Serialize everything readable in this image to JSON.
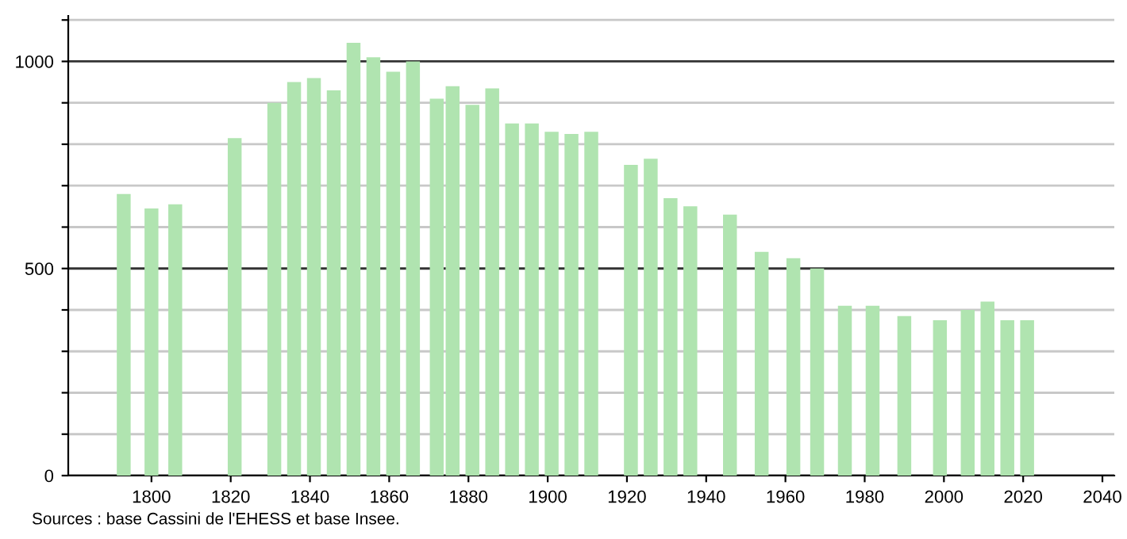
{
  "chart_data": {
    "type": "bar",
    "x": [
      1793,
      1800,
      1806,
      1821,
      1831,
      1836,
      1841,
      1846,
      1851,
      1856,
      1861,
      1866,
      1872,
      1876,
      1881,
      1886,
      1891,
      1896,
      1901,
      1906,
      1911,
      1921,
      1926,
      1931,
      1936,
      1946,
      1954,
      1962,
      1968,
      1975,
      1982,
      1990,
      1999,
      2006,
      2011,
      2016,
      2021
    ],
    "values": [
      680,
      645,
      655,
      815,
      900,
      950,
      960,
      930,
      1045,
      1010,
      975,
      1000,
      910,
      940,
      895,
      935,
      850,
      850,
      830,
      825,
      830,
      750,
      765,
      670,
      650,
      630,
      540,
      525,
      500,
      410,
      410,
      385,
      375,
      400,
      420,
      375,
      375
    ],
    "color": "#b0e4b0",
    "xlim": [
      1779,
      2043
    ],
    "xticks": [
      1800,
      1820,
      1840,
      1860,
      1880,
      1900,
      1920,
      1940,
      1960,
      1980,
      2000,
      2020,
      2040
    ],
    "ylim": [
      0,
      1110
    ],
    "yticks": [
      0,
      {
        "value": 100,
        "label": null
      },
      {
        "value": 200,
        "label": null
      },
      {
        "value": 300,
        "label": null
      },
      {
        "value": 400,
        "label": null
      },
      500,
      {
        "value": 600,
        "label": null
      },
      {
        "value": 700,
        "label": null
      },
      {
        "value": 800,
        "label": null
      },
      {
        "value": 900,
        "label": null
      },
      1000,
      {
        "value": 1100,
        "label": null
      }
    ],
    "grid": "y",
    "annotations": [
      "Sources : base Cassini de l'EHESS et base Insee."
    ]
  }
}
